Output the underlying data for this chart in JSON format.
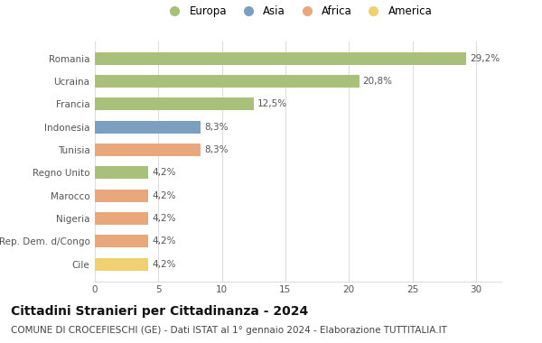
{
  "countries": [
    "Romania",
    "Ucraina",
    "Francia",
    "Indonesia",
    "Tunisia",
    "Regno Unito",
    "Marocco",
    "Nigeria",
    "Rep. Dem. d/Congo",
    "Cile"
  ],
  "values": [
    29.2,
    20.8,
    12.5,
    8.3,
    8.3,
    4.2,
    4.2,
    4.2,
    4.2,
    4.2
  ],
  "labels": [
    "29,2%",
    "20,8%",
    "12,5%",
    "8,3%",
    "8,3%",
    "4,2%",
    "4,2%",
    "4,2%",
    "4,2%",
    "4,2%"
  ],
  "bar_colors": [
    "#a8c07a",
    "#a8c07a",
    "#a8c07a",
    "#7a9fc0",
    "#e8a87c",
    "#a8c07a",
    "#e8a87c",
    "#e8a87c",
    "#e8a87c",
    "#f0d070"
  ],
  "legend_labels": [
    "Europa",
    "Asia",
    "Africa",
    "America"
  ],
  "legend_colors": [
    "#a8c07a",
    "#7a9fc0",
    "#e8a87c",
    "#f0d070"
  ],
  "title": "Cittadini Stranieri per Cittadinanza - 2024",
  "subtitle": "COMUNE DI CROCEFIESCHI (GE) - Dati ISTAT al 1° gennaio 2024 - Elaborazione TUTTITALIA.IT",
  "xlim": [
    0,
    32
  ],
  "xticks": [
    0,
    5,
    10,
    15,
    20,
    25,
    30
  ],
  "background_color": "#ffffff",
  "bar_height": 0.55,
  "grid_color": "#dddddd",
  "title_fontsize": 10,
  "subtitle_fontsize": 7.5,
  "label_fontsize": 7.5,
  "tick_fontsize": 7.5,
  "legend_fontsize": 8.5
}
